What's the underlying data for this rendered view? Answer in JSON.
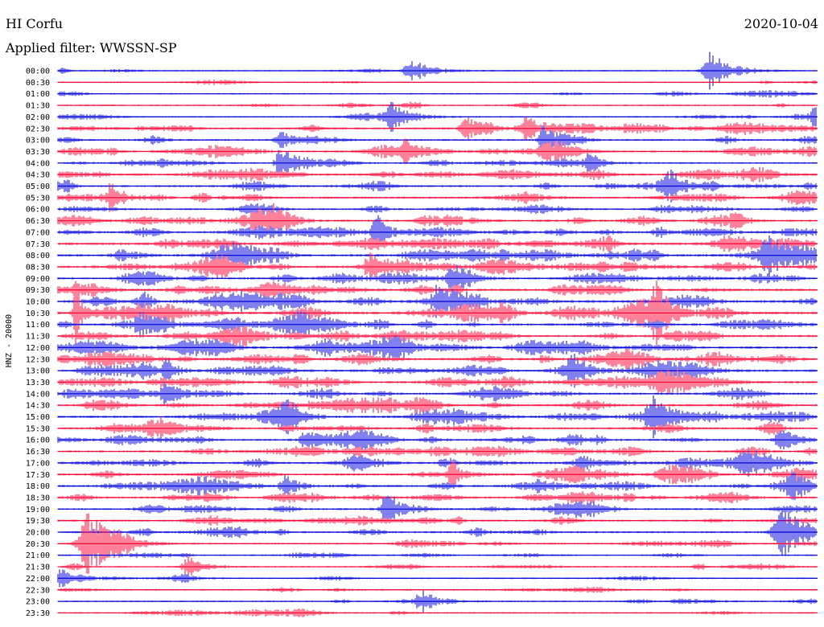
{
  "header": {
    "station": "HI Corfu",
    "date": "2020-10-04",
    "filter": "Applied filter: WWSSN-SP"
  },
  "chart_data": {
    "type": "line",
    "title": "",
    "ylabel": "HNZ - 20000",
    "xlabel": "",
    "rows": [
      "00:00",
      "00:30",
      "01:00",
      "01:30",
      "02:00",
      "02:30",
      "03:00",
      "03:30",
      "04:00",
      "04:30",
      "05:00",
      "05:30",
      "06:00",
      "06:30",
      "07:00",
      "07:30",
      "08:00",
      "08:30",
      "09:00",
      "09:30",
      "10:00",
      "10:30",
      "11:00",
      "11:30",
      "12:00",
      "12:30",
      "13:00",
      "13:30",
      "14:00",
      "14:30",
      "15:00",
      "15:30",
      "16:00",
      "16:30",
      "17:00",
      "17:30",
      "18:00",
      "18:30",
      "19:00",
      "19:30",
      "20:00",
      "20:30",
      "21:00",
      "21:30",
      "22:00",
      "22:30",
      "23:00",
      "23:30"
    ],
    "minutes_per_row": 30,
    "colors": [
      "#0000dd",
      "#ff0033"
    ],
    "activity": [
      0.1,
      0.05,
      0.12,
      0.18,
      0.2,
      0.55,
      0.35,
      0.55,
      0.35,
      0.65,
      0.45,
      0.55,
      0.4,
      0.65,
      0.55,
      0.7,
      0.8,
      0.75,
      0.6,
      0.7,
      0.85,
      0.9,
      0.75,
      0.7,
      0.75,
      0.8,
      0.7,
      0.7,
      0.6,
      0.6,
      0.7,
      0.5,
      0.6,
      0.55,
      0.6,
      0.6,
      0.6,
      0.6,
      0.5,
      0.45,
      0.45,
      0.3,
      0.2,
      0.2,
      0.15,
      0.15,
      0.15,
      0.2
    ],
    "events": [
      {
        "row": 0,
        "minute": 14.0,
        "amplitude": 0.45,
        "duration": 0.6
      },
      {
        "row": 0,
        "minute": 25.8,
        "amplitude": 0.75,
        "duration": 0.6
      },
      {
        "row": 4,
        "minute": 13.2,
        "amplitude": 0.55,
        "duration": 0.6
      },
      {
        "row": 4,
        "minute": 30.0,
        "amplitude": 0.45,
        "duration": 0.5
      },
      {
        "row": 5,
        "minute": 18.5,
        "amplitude": 0.5,
        "duration": 0.6
      },
      {
        "row": 5,
        "minute": 16.2,
        "amplitude": 0.4,
        "duration": 0.6
      },
      {
        "row": 6,
        "minute": 19.2,
        "amplitude": 0.6,
        "duration": 0.4
      },
      {
        "row": 6,
        "minute": 8.8,
        "amplitude": 0.4,
        "duration": 0.4
      },
      {
        "row": 7,
        "minute": 13.8,
        "amplitude": 0.45,
        "duration": 0.5
      },
      {
        "row": 8,
        "minute": 8.8,
        "amplitude": 0.6,
        "duration": 0.4
      },
      {
        "row": 8,
        "minute": 21.0,
        "amplitude": 0.45,
        "duration": 0.4
      },
      {
        "row": 10,
        "minute": 24.2,
        "amplitude": 0.6,
        "duration": 0.6
      },
      {
        "row": 11,
        "minute": 2.1,
        "amplitude": 0.45,
        "duration": 0.3
      },
      {
        "row": 14,
        "minute": 12.6,
        "amplitude": 0.7,
        "duration": 0.4
      },
      {
        "row": 16,
        "minute": 28.0,
        "amplitude": 0.6,
        "duration": 0.4
      },
      {
        "row": 17,
        "minute": 12.4,
        "amplitude": 0.45,
        "duration": 0.5
      },
      {
        "row": 18,
        "minute": 15.6,
        "amplitude": 0.55,
        "duration": 0.4
      },
      {
        "row": 20,
        "minute": 15.0,
        "amplitude": 0.5,
        "duration": 0.5
      },
      {
        "row": 21,
        "minute": 0.7,
        "amplitude": 1.2,
        "duration": 0.2
      },
      {
        "row": 21,
        "minute": 23.6,
        "amplitude": 0.6,
        "duration": 0.4
      },
      {
        "row": 22,
        "minute": 3.3,
        "amplitude": 0.55,
        "duration": 0.6
      },
      {
        "row": 26,
        "minute": 4.3,
        "amplitude": 0.55,
        "duration": 0.3
      },
      {
        "row": 26,
        "minute": 20.4,
        "amplitude": 0.5,
        "duration": 0.5
      },
      {
        "row": 28,
        "minute": 4.3,
        "amplitude": 0.45,
        "duration": 0.4
      },
      {
        "row": 30,
        "minute": 8.9,
        "amplitude": 0.55,
        "duration": 0.3
      },
      {
        "row": 30,
        "minute": 23.5,
        "amplitude": 0.75,
        "duration": 0.5
      },
      {
        "row": 32,
        "minute": 9.8,
        "amplitude": 0.5,
        "duration": 0.4
      },
      {
        "row": 32,
        "minute": 28.6,
        "amplitude": 0.45,
        "duration": 0.5
      },
      {
        "row": 35,
        "minute": 15.6,
        "amplitude": 0.55,
        "duration": 0.4
      },
      {
        "row": 36,
        "minute": 9.0,
        "amplitude": 0.45,
        "duration": 0.4
      },
      {
        "row": 36,
        "minute": 29.0,
        "amplitude": 0.45,
        "duration": 0.5
      },
      {
        "row": 38,
        "minute": 13.0,
        "amplitude": 0.7,
        "duration": 0.4
      },
      {
        "row": 40,
        "minute": 28.6,
        "amplitude": 1.1,
        "duration": 0.7
      },
      {
        "row": 41,
        "minute": 1.2,
        "amplitude": 1.3,
        "duration": 0.7
      },
      {
        "row": 43,
        "minute": 5.2,
        "amplitude": 0.45,
        "duration": 0.5
      },
      {
        "row": 44,
        "minute": 0.2,
        "amplitude": 0.45,
        "duration": 0.5
      },
      {
        "row": 46,
        "minute": 14.4,
        "amplitude": 0.4,
        "duration": 0.6
      }
    ]
  }
}
